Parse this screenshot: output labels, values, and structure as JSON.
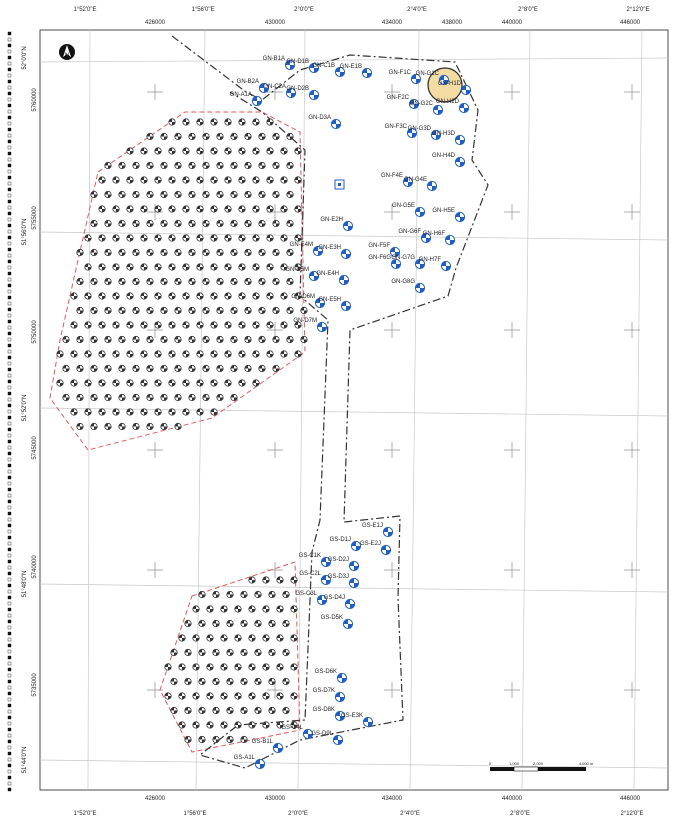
{
  "map": {
    "top_axis_lon_labels": [
      "1°52'0\"E",
      "1°56'0\"E",
      "2°0'0\"E",
      "2°4'0\"E",
      "2°8'0\"E",
      "2°12'0\"E"
    ],
    "bottom_axis_lon_labels": [
      "1°52'0\"E",
      "1°56'0\"E",
      "2°0'0\"E",
      "2°4'0\"E",
      "2°8'0\"E",
      "2°12'0\"E"
    ],
    "top_axis_easting_labels": [
      "426000",
      "430000",
      "434000",
      "438000",
      "440000",
      "446000"
    ],
    "bottom_axis_easting_labels": [
      "426000",
      "430000",
      "434000",
      "440000",
      "446000"
    ],
    "left_axis_lat_labels": [
      "52°0'0\"N",
      "51°56'0\"N",
      "51°52'0\"N",
      "51°48'0\"N",
      "51°44'0\"N"
    ],
    "left_axis_northing_labels": [
      "5760000",
      "5755000",
      "5750000",
      "5745000",
      "5740000",
      "5735000"
    ],
    "north_arrow_label": "N",
    "scale_bar_labels": [
      "0",
      "1,000",
      "2,000",
      "4,000 m"
    ],
    "north_turbines": [
      {
        "label": "GN-B1A"
      },
      {
        "label": "GN-B2A"
      },
      {
        "label": "GN-C2A"
      },
      {
        "label": "GN-A1A"
      },
      {
        "label": "GN-D1B"
      },
      {
        "label": "GN-C1B"
      },
      {
        "label": "GN-E1B"
      },
      {
        "label": "GN-D2B"
      },
      {
        "label": "GN-F1C"
      },
      {
        "label": "GN-G1C"
      },
      {
        "label": "GN-H1D"
      },
      {
        "label": "GN-H2D"
      },
      {
        "label": "GN-F2C"
      },
      {
        "label": "GN-G2C"
      },
      {
        "label": "GN-D3A"
      },
      {
        "label": "GN-F3C"
      },
      {
        "label": "GN-G3D"
      },
      {
        "label": "GN-H3D"
      },
      {
        "label": "GN-H4D"
      },
      {
        "label": "GN-F4E"
      },
      {
        "label": "GN-G4E"
      },
      {
        "label": "GN-G5E"
      },
      {
        "label": "GN-H5E"
      },
      {
        "label": "GN-E2H"
      },
      {
        "label": "GN-G6F"
      },
      {
        "label": "GN-H6F"
      },
      {
        "label": "GN-E4M"
      },
      {
        "label": "GN-E3H"
      },
      {
        "label": "GN-F5F"
      },
      {
        "label": "GN-F6G"
      },
      {
        "label": "GN-G7G"
      },
      {
        "label": "GN-H7F"
      },
      {
        "label": "GN-D5M"
      },
      {
        "label": "GN-E4H"
      },
      {
        "label": "GN-G8G"
      },
      {
        "label": "GN-D6M"
      },
      {
        "label": "GN-E5H"
      },
      {
        "label": "GN-D7M"
      }
    ],
    "south_turbines": [
      {
        "label": "GS-E1J"
      },
      {
        "label": "GS-D1J"
      },
      {
        "label": "GS-E2J"
      },
      {
        "label": "GS-C1K"
      },
      {
        "label": "GS-D2J"
      },
      {
        "label": "GS-C2L"
      },
      {
        "label": "GS-D3J"
      },
      {
        "label": "GS-C3L"
      },
      {
        "label": "GS-D4J"
      },
      {
        "label": "GS-D5K"
      },
      {
        "label": "GS-D6K"
      },
      {
        "label": "GS-D7K"
      },
      {
        "label": "GS-D8K"
      },
      {
        "label": "GS-E3K"
      },
      {
        "label": "GS-C4L"
      },
      {
        "label": "GS-D9L"
      },
      {
        "label": "GS-B1L"
      },
      {
        "label": "GS-A1L"
      }
    ],
    "colors": {
      "grid": "#c8c8c8",
      "frame": "#222222",
      "dash_dot": "#333333",
      "red_boundary": "#e05a5a",
      "turbine_blue": "#1f5fc4",
      "existing_turbine": "#333333",
      "highlight_fill": "#f3dca2",
      "highlight_ring": "#2a2a2a",
      "substation": "#1f5fc4"
    }
  }
}
